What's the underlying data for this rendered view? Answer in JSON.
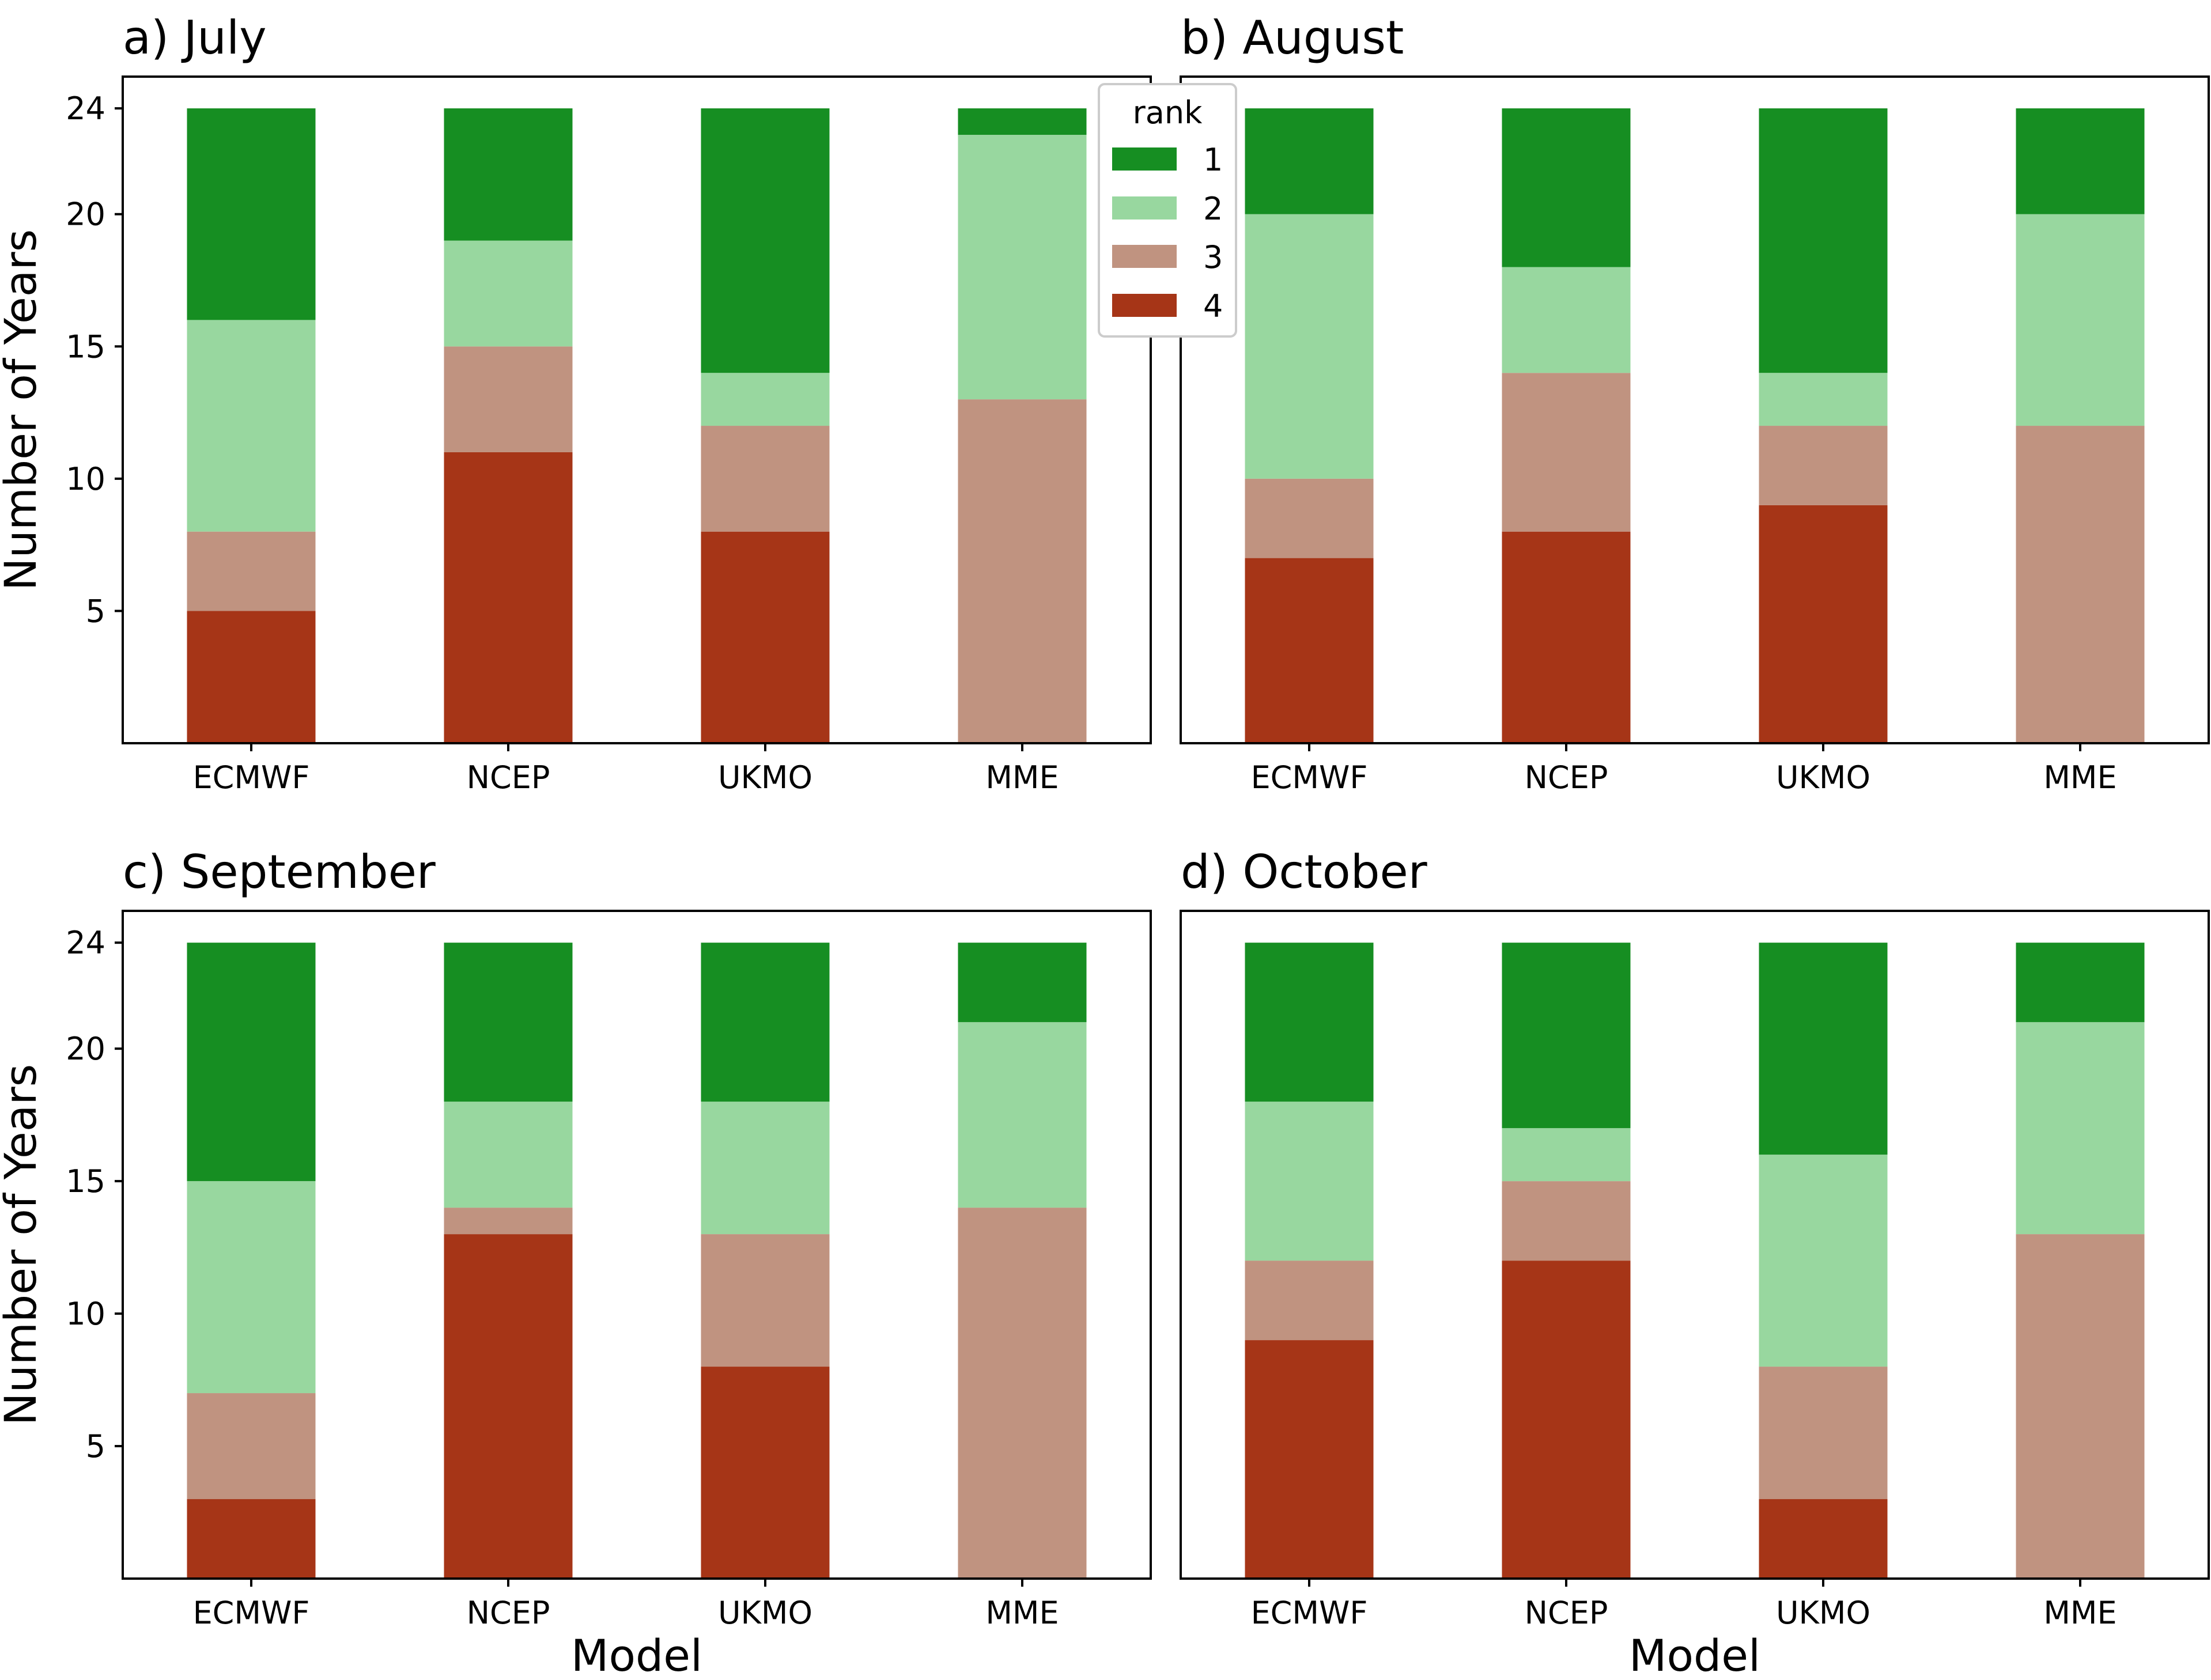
{
  "chart_data": [
    {
      "type": "bar",
      "stacked": true,
      "title": "a) July",
      "xlabel": "",
      "ylabel": "Number of Years",
      "ylim": [
        0,
        25.2
      ],
      "yticks": [
        5,
        10,
        15,
        20,
        24
      ],
      "categories": [
        "ECMWF",
        "NCEP",
        "UKMO",
        "MME"
      ],
      "series": [
        {
          "name": "4",
          "values": [
            5,
            11,
            8,
            0
          ]
        },
        {
          "name": "3",
          "values": [
            3,
            4,
            4,
            13
          ]
        },
        {
          "name": "2",
          "values": [
            8,
            4,
            2,
            10
          ]
        },
        {
          "name": "1",
          "values": [
            8,
            5,
            10,
            1
          ]
        }
      ]
    },
    {
      "type": "bar",
      "stacked": true,
      "title": "b) August",
      "xlabel": "",
      "ylabel": "",
      "ylim": [
        0,
        25.2
      ],
      "yticks": [],
      "categories": [
        "ECMWF",
        "NCEP",
        "UKMO",
        "MME"
      ],
      "series": [
        {
          "name": "4",
          "values": [
            7,
            8,
            9,
            0
          ]
        },
        {
          "name": "3",
          "values": [
            3,
            6,
            3,
            12
          ]
        },
        {
          "name": "2",
          "values": [
            10,
            4,
            2,
            8
          ]
        },
        {
          "name": "1",
          "values": [
            4,
            6,
            10,
            4
          ]
        }
      ]
    },
    {
      "type": "bar",
      "stacked": true,
      "title": "c) September",
      "xlabel": "Model",
      "ylabel": "Number of Years",
      "ylim": [
        0,
        25.2
      ],
      "yticks": [
        5,
        10,
        15,
        20,
        24
      ],
      "categories": [
        "ECMWF",
        "NCEP",
        "UKMO",
        "MME"
      ],
      "series": [
        {
          "name": "4",
          "values": [
            3,
            13,
            8,
            0
          ]
        },
        {
          "name": "3",
          "values": [
            4,
            1,
            5,
            14
          ]
        },
        {
          "name": "2",
          "values": [
            8,
            4,
            5,
            7
          ]
        },
        {
          "name": "1",
          "values": [
            9,
            6,
            6,
            3
          ]
        }
      ]
    },
    {
      "type": "bar",
      "stacked": true,
      "title": "d) October",
      "xlabel": "Model",
      "ylabel": "",
      "ylim": [
        0,
        25.2
      ],
      "yticks": [],
      "categories": [
        "ECMWF",
        "NCEP",
        "UKMO",
        "MME"
      ],
      "series": [
        {
          "name": "4",
          "values": [
            9,
            12,
            3,
            0
          ]
        },
        {
          "name": "3",
          "values": [
            3,
            3,
            5,
            13
          ]
        },
        {
          "name": "2",
          "values": [
            6,
            2,
            8,
            8
          ]
        },
        {
          "name": "1",
          "values": [
            6,
            7,
            8,
            3
          ]
        }
      ]
    }
  ],
  "legend": {
    "title": "rank",
    "placement": "top-center",
    "items": [
      {
        "label": "1",
        "color": "#168e22"
      },
      {
        "label": "2",
        "color": "#98d79f"
      },
      {
        "label": "3",
        "color": "#c09380"
      },
      {
        "label": "4",
        "color": "#a63517"
      }
    ]
  },
  "colors": {
    "1": "#168e22",
    "2": "#98d79f",
    "3": "#c09380",
    "4": "#a63517"
  }
}
